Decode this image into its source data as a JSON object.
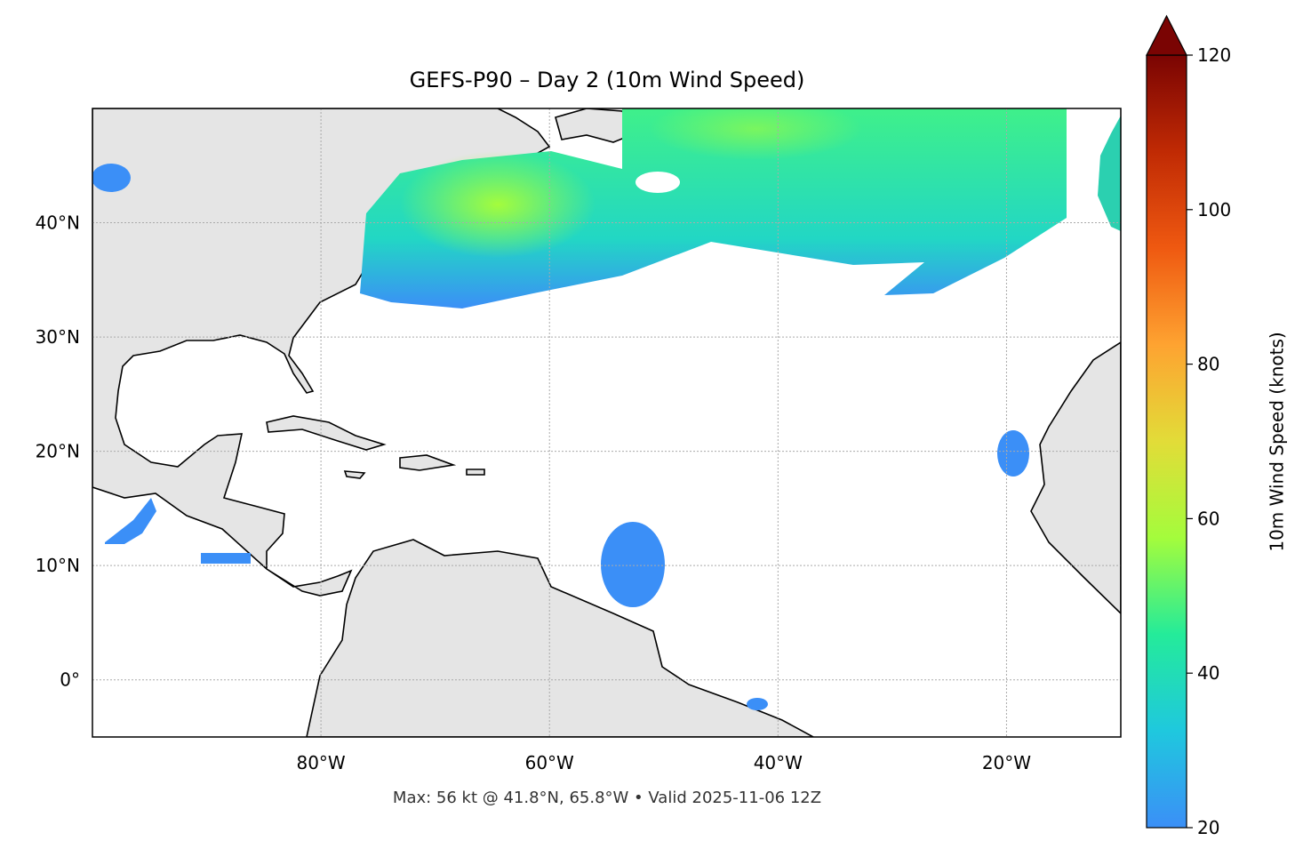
{
  "chart_data": {
    "type": "map",
    "title": "GEFS-P90 – Day 2 (10m Wind Speed)",
    "footer": "Max: 56 kt @ 41.8°N, 65.8°W • Valid 2025-11-06 12Z",
    "xlim": [
      -100,
      -10
    ],
    "ylim": [
      -5,
      50
    ],
    "xticks": [
      {
        "value": -80,
        "label": "80°W"
      },
      {
        "value": -60,
        "label": "60°W"
      },
      {
        "value": -40,
        "label": "40°W"
      },
      {
        "value": -20,
        "label": "20°W"
      }
    ],
    "yticks": [
      {
        "value": 0,
        "label": "0°"
      },
      {
        "value": 10,
        "label": "10°N"
      },
      {
        "value": 20,
        "label": "20°N"
      },
      {
        "value": 30,
        "label": "30°N"
      },
      {
        "value": 40,
        "label": "40°N"
      }
    ],
    "grid": true,
    "colorbar": {
      "label": "10m Wind Speed (knots)",
      "lim": [
        20,
        120
      ],
      "ticks": [
        20,
        40,
        60,
        80,
        100,
        120
      ],
      "extend": "max",
      "colors": [
        "#3b8ff7",
        "#1fc8de",
        "#24eb9a",
        "#a4fc3c",
        "#e2dc38",
        "#fea331",
        "#ef5911",
        "#c02a04",
        "#7a0403"
      ]
    }
  }
}
